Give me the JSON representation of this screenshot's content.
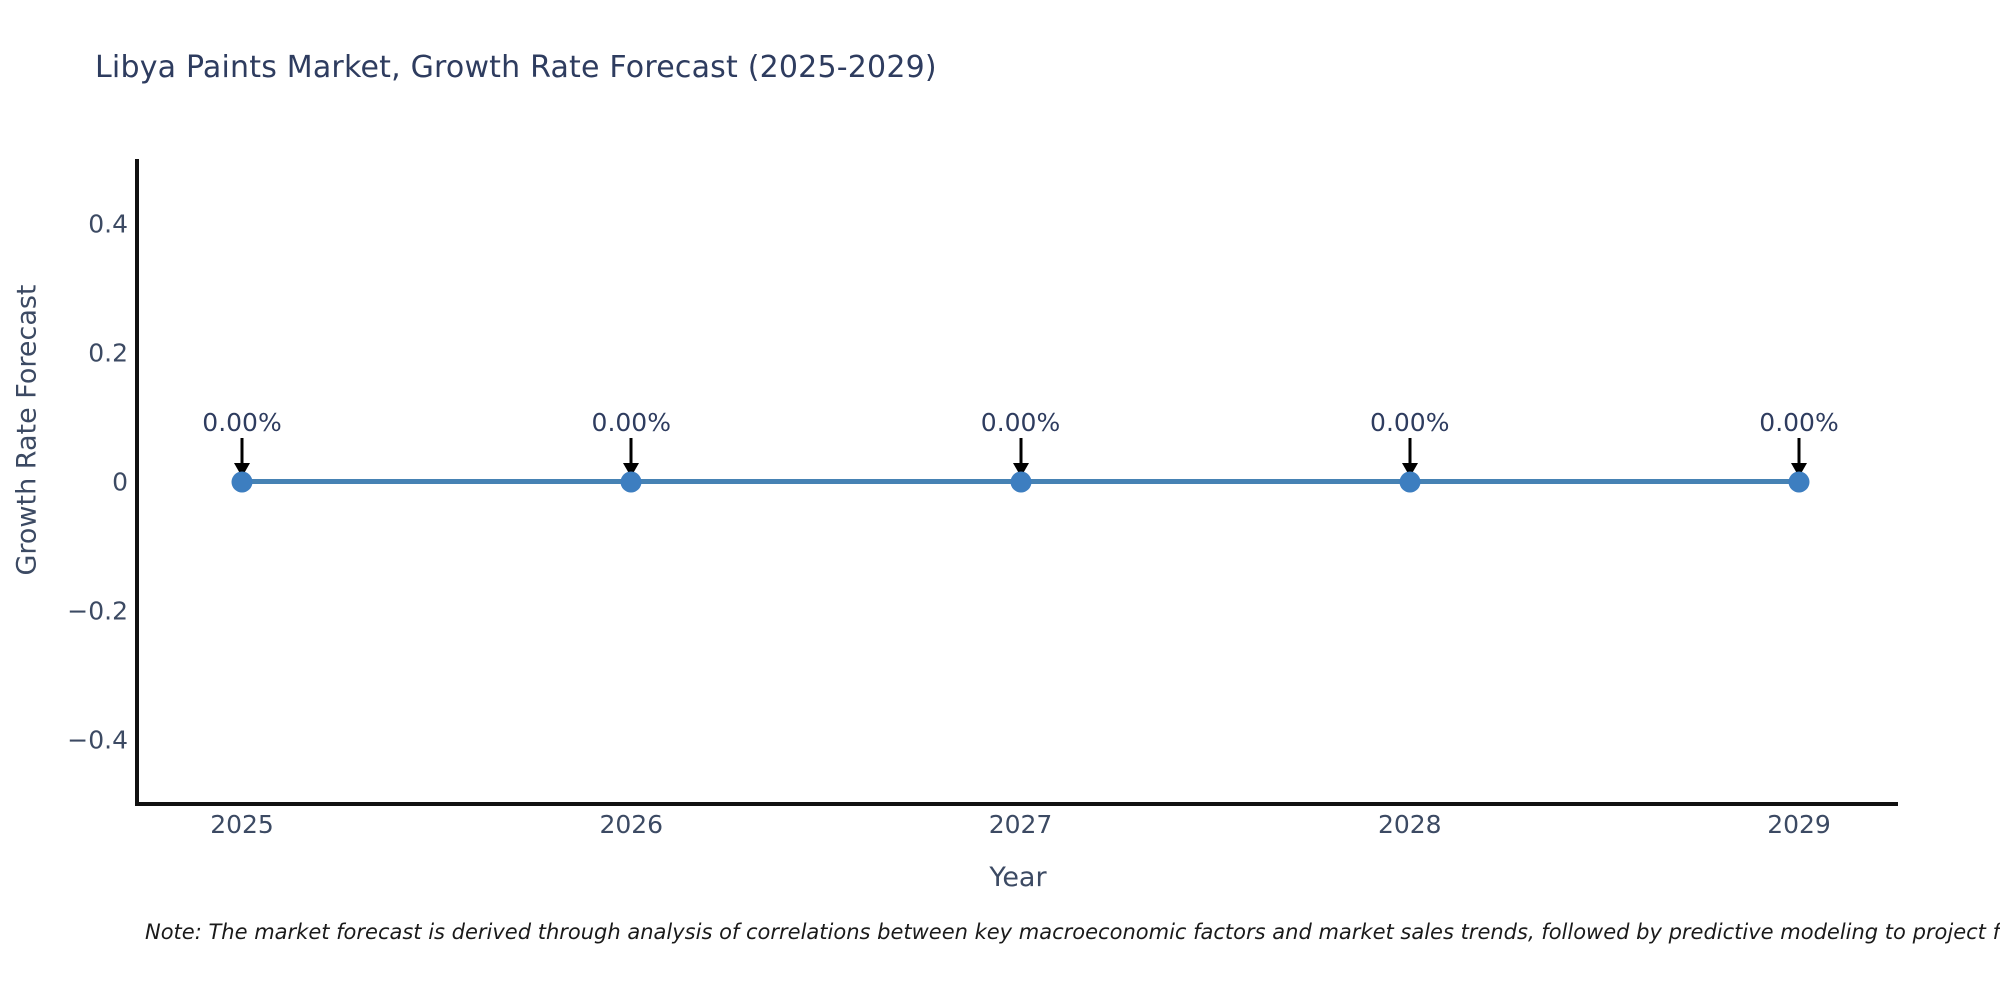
{
  "title": "Libya Paints Market, Growth Rate Forecast (2025-2029)",
  "footnote": "Note: The market forecast is derived through analysis of correlations between key macroeconomic factors and market sales trends, followed by predictive modeling to project future sal",
  "colors": {
    "title_text": "#2e3c5f",
    "axis_text": "#3c4a63",
    "axis_spine": "#111111",
    "line": "#4682b4",
    "marker": "#3d7ec0",
    "arrow": "#000000",
    "background": "#ffffff"
  },
  "chart_data": {
    "type": "line",
    "title": "Libya Paints Market, Growth Rate Forecast (2025-2029)",
    "xlabel": "Year",
    "ylabel": "Growth Rate Forecast",
    "categories": [
      "2025",
      "2026",
      "2027",
      "2028",
      "2029"
    ],
    "values": [
      0,
      0,
      0,
      0,
      0
    ],
    "point_labels": [
      "0.00%",
      "0.00%",
      "0.00%",
      "0.00%",
      "0.00%"
    ],
    "ylim": [
      -0.5,
      0.5
    ],
    "yticks": [
      0.4,
      0.2,
      0,
      -0.2,
      -0.4
    ],
    "ytick_labels": [
      "0.4",
      "0.2",
      "0",
      "−0.2",
      "−0.4"
    ],
    "grid": false,
    "legend": "none",
    "annotation_style": "down-arrow-to-point"
  }
}
